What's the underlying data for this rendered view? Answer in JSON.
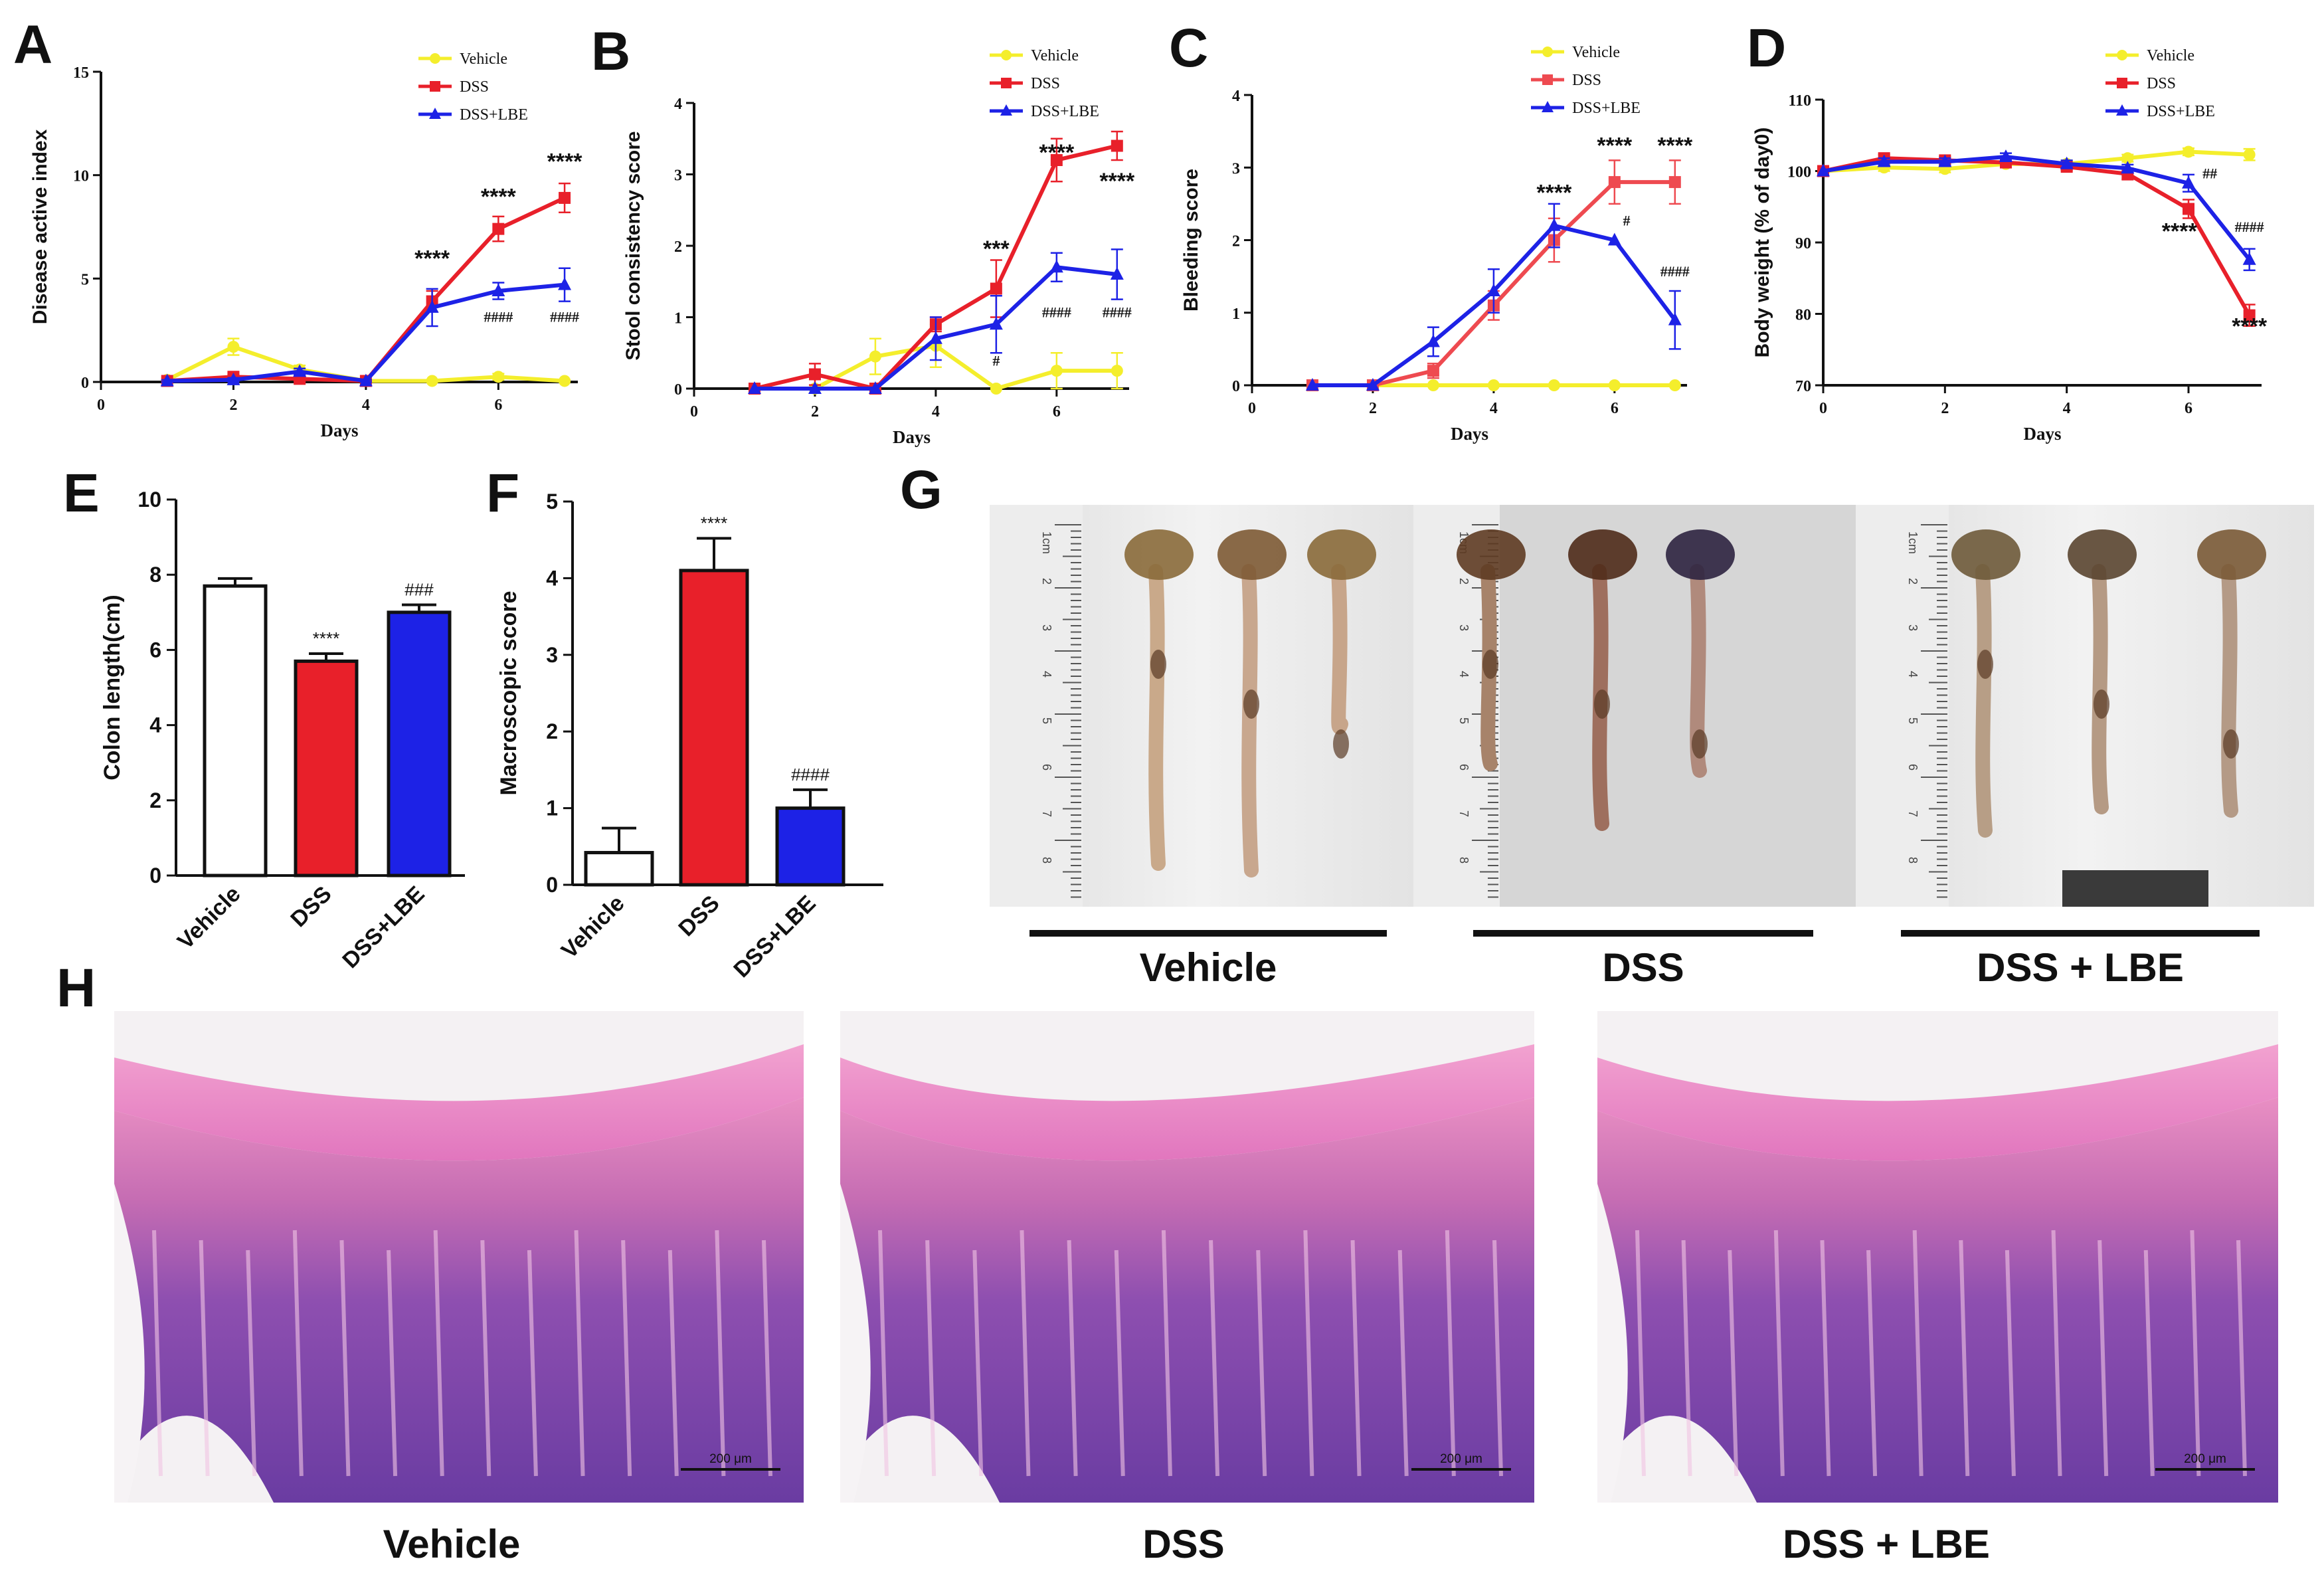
{
  "colors": {
    "vehicle": "#f4ee2c",
    "dss": "#e8202a",
    "dss_lbe": "#1d22e6",
    "dss_photo_line": "#ee4a50"
  },
  "chart_data": [
    {
      "id": "A",
      "type": "line",
      "panel_label": "A",
      "xlabel": "Days",
      "ylabel": "Disease active index",
      "xlim": [
        0,
        7.2
      ],
      "ylim": [
        0,
        15
      ],
      "xticks": [
        "0",
        "2",
        "4",
        "6"
      ],
      "xtick_values": [
        0,
        2,
        4,
        6
      ],
      "yticks": [
        "0",
        "5",
        "10",
        "15"
      ],
      "ytick_values": [
        0,
        5,
        10,
        15
      ],
      "x": [
        1,
        2,
        3,
        4,
        5,
        6,
        7
      ],
      "series": [
        {
          "name": "Vehicle",
          "color_key": "vehicle",
          "marker": "circle",
          "values": [
            0.1,
            1.7,
            0.6,
            0.05,
            0.05,
            0.25,
            0.05
          ],
          "err": [
            0.1,
            0.4,
            0.2,
            0.05,
            0.05,
            0.15,
            0.05
          ]
        },
        {
          "name": "DSS",
          "color_key": "dss",
          "marker": "square",
          "values": [
            0.05,
            0.25,
            0.15,
            0.05,
            3.9,
            7.4,
            8.9
          ],
          "err": [
            0.05,
            0.1,
            0.1,
            0.05,
            0.5,
            0.6,
            0.7
          ]
        },
        {
          "name": "DSS+LBE",
          "color_key": "dss_lbe",
          "marker": "triangle",
          "values": [
            0.05,
            0.1,
            0.5,
            0.05,
            3.6,
            4.4,
            4.7
          ],
          "err": [
            0.05,
            0.1,
            0.15,
            0.05,
            0.9,
            0.4,
            0.8
          ]
        }
      ],
      "annotations": [
        {
          "text": "****",
          "x": 5,
          "y": 5.6,
          "size": "big"
        },
        {
          "text": "****",
          "x": 6,
          "y": 8.6,
          "size": "big"
        },
        {
          "text": "****",
          "x": 7,
          "y": 10.3,
          "size": "big"
        },
        {
          "text": "####",
          "x": 6,
          "y": 2.9,
          "size": "small"
        },
        {
          "text": "####",
          "x": 7,
          "y": 2.9,
          "size": "small"
        }
      ]
    },
    {
      "id": "B",
      "type": "line",
      "panel_label": "B",
      "xlabel": "Days",
      "ylabel": "Stool consistency score",
      "xlim": [
        0,
        7.2
      ],
      "ylim": [
        0,
        4
      ],
      "xticks": [
        "0",
        "2",
        "4",
        "6"
      ],
      "xtick_values": [
        0,
        2,
        4,
        6
      ],
      "yticks": [
        "0",
        "1",
        "2",
        "3",
        "4"
      ],
      "ytick_values": [
        0,
        1,
        2,
        3,
        4
      ],
      "x": [
        1,
        2,
        3,
        4,
        5,
        6,
        7
      ],
      "series": [
        {
          "name": "Vehicle",
          "color_key": "vehicle",
          "marker": "circle",
          "values": [
            0,
            0,
            0.45,
            0.6,
            0,
            0.25,
            0.25
          ],
          "err": [
            0,
            0,
            0.25,
            0.3,
            0,
            0.25,
            0.25
          ]
        },
        {
          "name": "DSS",
          "color_key": "dss",
          "marker": "square",
          "values": [
            0,
            0.2,
            0,
            0.9,
            1.4,
            3.2,
            3.4
          ],
          "err": [
            0,
            0.15,
            0,
            0.1,
            0.4,
            0.3,
            0.2
          ]
        },
        {
          "name": "DSS+LBE",
          "color_key": "dss_lbe",
          "marker": "triangle",
          "values": [
            0,
            0,
            0,
            0.7,
            0.9,
            1.7,
            1.6
          ],
          "err": [
            0,
            0,
            0,
            0.3,
            0.4,
            0.2,
            0.35
          ]
        }
      ],
      "annotations": [
        {
          "text": "***",
          "x": 5,
          "y": 1.85,
          "size": "big"
        },
        {
          "text": "****",
          "x": 6,
          "y": 3.2,
          "size": "big"
        },
        {
          "text": "****",
          "x": 7,
          "y": 2.8,
          "size": "big"
        },
        {
          "text": "#",
          "x": 5,
          "y": 0.32,
          "size": "small"
        },
        {
          "text": "####",
          "x": 6,
          "y": 1.0,
          "size": "small"
        },
        {
          "text": "####",
          "x": 7,
          "y": 1.0,
          "size": "small"
        }
      ]
    },
    {
      "id": "C",
      "type": "line",
      "panel_label": "C",
      "xlabel": "Days",
      "ylabel": "Bleeding score",
      "xlim": [
        0,
        7.2
      ],
      "ylim": [
        0,
        4
      ],
      "xticks": [
        "0",
        "2",
        "4",
        "6"
      ],
      "xtick_values": [
        0,
        2,
        4,
        6
      ],
      "yticks": [
        "0",
        "1",
        "2",
        "3",
        "4"
      ],
      "ytick_values": [
        0,
        1,
        2,
        3,
        4
      ],
      "x": [
        1,
        2,
        3,
        4,
        5,
        6,
        7
      ],
      "series": [
        {
          "name": "Vehicle",
          "color_key": "vehicle",
          "marker": "circle",
          "values": [
            0,
            0,
            0,
            0,
            0,
            0,
            0
          ],
          "err": [
            0,
            0,
            0,
            0,
            0,
            0,
            0
          ]
        },
        {
          "name": "DSS",
          "color_key": "dss_photo_line",
          "marker": "square",
          "values": [
            0,
            0,
            0.2,
            1.1,
            2.0,
            2.8,
            2.8
          ],
          "err": [
            0,
            0,
            0.1,
            0.2,
            0.3,
            0.3,
            0.3
          ]
        },
        {
          "name": "DSS+LBE",
          "color_key": "dss_lbe",
          "marker": "triangle",
          "values": [
            0,
            0,
            0.6,
            1.3,
            2.2,
            2.0,
            0.9
          ],
          "err": [
            0,
            0,
            0.2,
            0.3,
            0.3,
            0,
            0.4
          ]
        }
      ],
      "annotations": [
        {
          "text": "****",
          "x": 5,
          "y": 2.55,
          "size": "big"
        },
        {
          "text": "****",
          "x": 6,
          "y": 3.2,
          "size": "big"
        },
        {
          "text": "****",
          "x": 7,
          "y": 3.2,
          "size": "big"
        },
        {
          "text": "#",
          "x": 6.2,
          "y": 2.2,
          "size": "small"
        },
        {
          "text": "####",
          "x": 7,
          "y": 1.5,
          "size": "small"
        }
      ]
    },
    {
      "id": "D",
      "type": "line",
      "panel_label": "D",
      "xlabel": "Days",
      "ylabel": "Body weight (% of day0)",
      "xlim": [
        0,
        7.2
      ],
      "ylim": [
        70,
        110
      ],
      "xticks": [
        "0",
        "2",
        "4",
        "6"
      ],
      "xtick_values": [
        0,
        2,
        4,
        6
      ],
      "yticks": [
        "70",
        "80",
        "90",
        "100",
        "110"
      ],
      "ytick_values": [
        70,
        80,
        90,
        100,
        110
      ],
      "x": [
        0,
        1,
        2,
        3,
        4,
        5,
        6,
        7
      ],
      "series": [
        {
          "name": "Vehicle",
          "color_key": "vehicle",
          "marker": "circle",
          "values": [
            100,
            100.5,
            100.3,
            101,
            101,
            101.8,
            102.7,
            102.3
          ],
          "err": [
            0,
            0.5,
            0.5,
            0.5,
            0.5,
            0.5,
            0.5,
            0.8
          ]
        },
        {
          "name": "DSS",
          "color_key": "dss",
          "marker": "square",
          "values": [
            100,
            101.8,
            101.5,
            101.2,
            100.6,
            99.6,
            94.7,
            79.8
          ],
          "err": [
            0,
            0.5,
            0.5,
            0.5,
            0.5,
            0.8,
            1.3,
            1.5
          ]
        },
        {
          "name": "DSS+LBE",
          "color_key": "dss_lbe",
          "marker": "triangle",
          "values": [
            100,
            101.3,
            101.3,
            102,
            101,
            100.4,
            98.3,
            87.6
          ],
          "err": [
            0,
            0.5,
            0.5,
            0.5,
            0.5,
            0.5,
            1.2,
            1.5
          ]
        }
      ],
      "annotations": [
        {
          "text": "##",
          "x": 6.35,
          "y": 99,
          "size": "small"
        },
        {
          "text": "####",
          "x": 7,
          "y": 91.5,
          "size": "small"
        },
        {
          "text": "****",
          "x": 5.85,
          "y": 90.5,
          "size": "big"
        },
        {
          "text": "****",
          "x": 7,
          "y": 77.2,
          "size": "big"
        }
      ]
    },
    {
      "id": "E",
      "type": "bar",
      "panel_label": "E",
      "ylabel": "Colon length(cm)",
      "ylim": [
        0,
        10
      ],
      "yticks": [
        "0",
        "2",
        "4",
        "6",
        "8",
        "10"
      ],
      "ytick_values": [
        0,
        2,
        4,
        6,
        8,
        10
      ],
      "categories": [
        "Vehicle",
        "DSS",
        "DSS+LBE"
      ],
      "values": [
        7.7,
        5.7,
        7.0
      ],
      "err": [
        0.2,
        0.2,
        0.2
      ],
      "fill_keys": [
        "white",
        "dss",
        "dss_lbe"
      ],
      "annotations": [
        "",
        "****",
        "###"
      ]
    },
    {
      "id": "F",
      "type": "bar",
      "panel_label": "F",
      "ylabel": "Macroscopic score",
      "ylim": [
        0,
        5
      ],
      "yticks": [
        "0",
        "1",
        "2",
        "3",
        "4",
        "5"
      ],
      "ytick_values": [
        0,
        1,
        2,
        3,
        4,
        5
      ],
      "categories": [
        "Vehicle",
        "DSS",
        "DSS+LBE"
      ],
      "values": [
        0.42,
        4.1,
        1.0
      ],
      "err": [
        0.32,
        0.42,
        0.24
      ],
      "fill_keys": [
        "white",
        "dss",
        "dss_lbe"
      ],
      "annotations": [
        "",
        "****",
        "####"
      ]
    }
  ],
  "legend": {
    "vehicle": "Vehicle",
    "dss": "DSS",
    "dss_lbe": "DSS+LBE"
  },
  "panel_g": {
    "label": "G",
    "groups": [
      {
        "name": "Vehicle"
      },
      {
        "name": "DSS"
      },
      {
        "name": "DSS + LBE"
      }
    ],
    "ruler_cm": [
      "1cm",
      "2",
      "3",
      "4",
      "5",
      "6",
      "7",
      "8"
    ]
  },
  "panel_h": {
    "label": "H",
    "panels": [
      {
        "name": "Vehicle",
        "scale": "200 μm"
      },
      {
        "name": "DSS",
        "scale": "200 μm"
      },
      {
        "name": "DSS + LBE",
        "scale": "200 μm"
      }
    ]
  }
}
